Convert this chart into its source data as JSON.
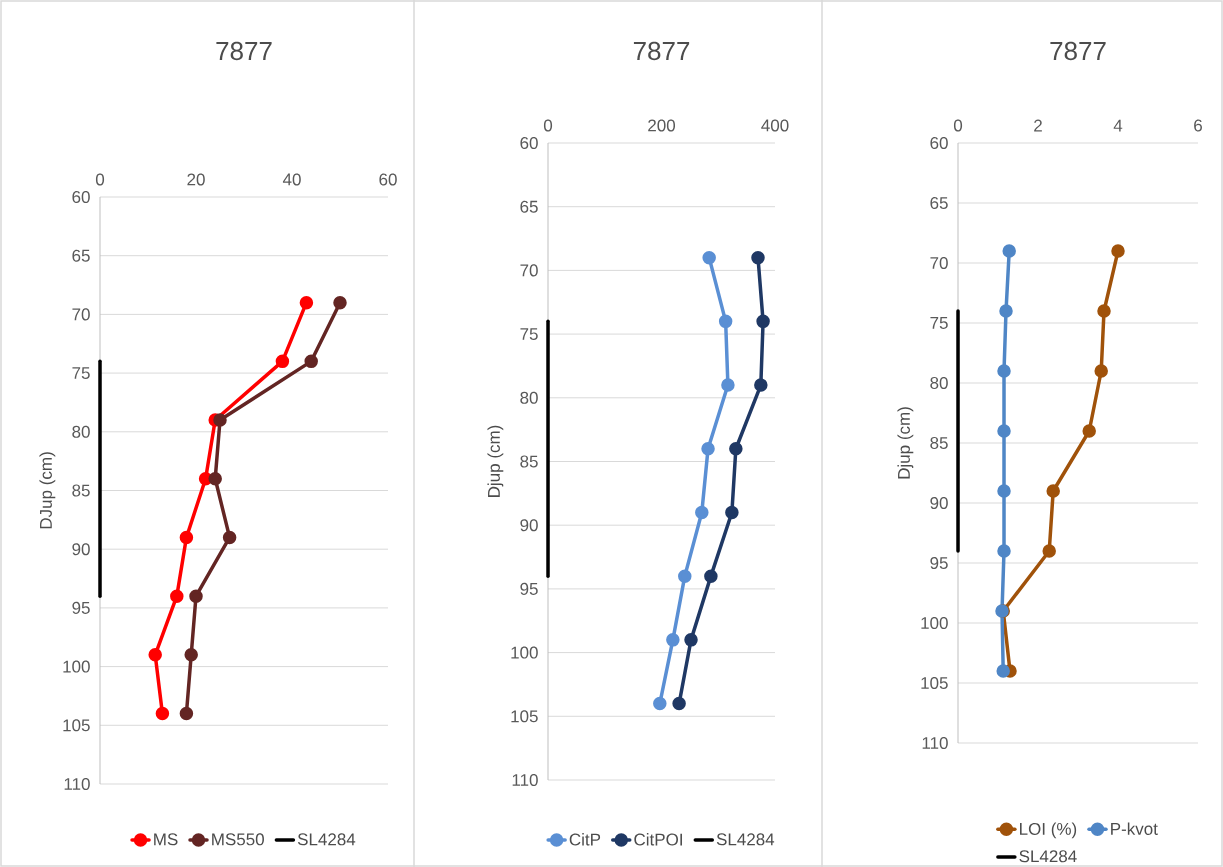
{
  "chart_data": [
    {
      "type": "line",
      "title": "7877",
      "ylabel": "DJup (cm)",
      "xlim": [
        0,
        60
      ],
      "xticks": [
        0,
        20,
        40,
        60
      ],
      "ylim": [
        110,
        60
      ],
      "yticks": [
        60,
        65,
        70,
        75,
        80,
        85,
        90,
        95,
        100,
        105,
        110
      ],
      "grid": "y",
      "legend": "bottom",
      "marker": "circle",
      "line_style": "solid",
      "series": [
        {
          "name": "MS",
          "color": "#ff0000",
          "x": [
            43,
            38,
            24,
            22,
            18,
            16,
            11.5,
            13
          ],
          "values": [
            69,
            74,
            79,
            84,
            89,
            94,
            99,
            104
          ]
        },
        {
          "name": "MS550",
          "color": "#632523",
          "x": [
            50,
            44,
            25,
            24,
            27,
            20,
            19,
            18
          ],
          "values": [
            69,
            74,
            79,
            84,
            89,
            94,
            99,
            104
          ]
        },
        {
          "name": "SL4284",
          "color": "#000000",
          "marker": "none",
          "x": [
            0,
            0
          ],
          "values": [
            74,
            94
          ]
        }
      ]
    },
    {
      "type": "line",
      "title": "7877",
      "ylabel": "Djup (cm)",
      "xlim": [
        0,
        400
      ],
      "xticks": [
        0,
        200,
        400
      ],
      "ylim": [
        110,
        60
      ],
      "yticks": [
        60,
        65,
        70,
        75,
        80,
        85,
        90,
        95,
        100,
        105,
        110
      ],
      "grid": "y",
      "legend": "bottom",
      "marker": "circle",
      "line_style": "solid",
      "series": [
        {
          "name": "CitP",
          "color": "#5a8fd4",
          "x": [
            284,
            313,
            317,
            282,
            271,
            241,
            220,
            197
          ],
          "values": [
            69,
            74,
            79,
            84,
            89,
            94,
            99,
            104
          ]
        },
        {
          "name": "CitPOI",
          "color": "#1f3864",
          "x": [
            370,
            379,
            375,
            331,
            324,
            287,
            252,
            231
          ],
          "values": [
            69,
            74,
            79,
            84,
            89,
            94,
            99,
            104
          ]
        },
        {
          "name": "SL4284",
          "color": "#000000",
          "marker": "none",
          "x": [
            0,
            0
          ],
          "values": [
            74,
            94
          ]
        }
      ]
    },
    {
      "type": "line",
      "title": "7877",
      "ylabel": "Djup (cm)",
      "xlim": [
        0,
        6
      ],
      "xticks": [
        0,
        2,
        4,
        6
      ],
      "ylim": [
        110,
        60
      ],
      "yticks": [
        60,
        65,
        70,
        75,
        80,
        85,
        90,
        95,
        100,
        105,
        110
      ],
      "grid": "y",
      "legend": "bottom",
      "marker": "circle",
      "line_style": "solid",
      "series": [
        {
          "name": "LOI (%)",
          "color": "#a0520a",
          "x": [
            4.0,
            3.65,
            3.58,
            3.28,
            2.38,
            2.28,
            1.13,
            1.3
          ],
          "values": [
            69,
            74,
            79,
            84,
            89,
            94,
            99,
            104
          ]
        },
        {
          "name": "P-kvot",
          "color": "#4f86c6",
          "x": [
            1.28,
            1.2,
            1.15,
            1.15,
            1.15,
            1.15,
            1.1,
            1.13
          ],
          "values": [
            69,
            74,
            79,
            84,
            89,
            94,
            99,
            104
          ]
        },
        {
          "name": "SL4284",
          "color": "#000000",
          "marker": "none",
          "x": [
            0,
            0
          ],
          "values": [
            74,
            94
          ]
        }
      ]
    }
  ]
}
